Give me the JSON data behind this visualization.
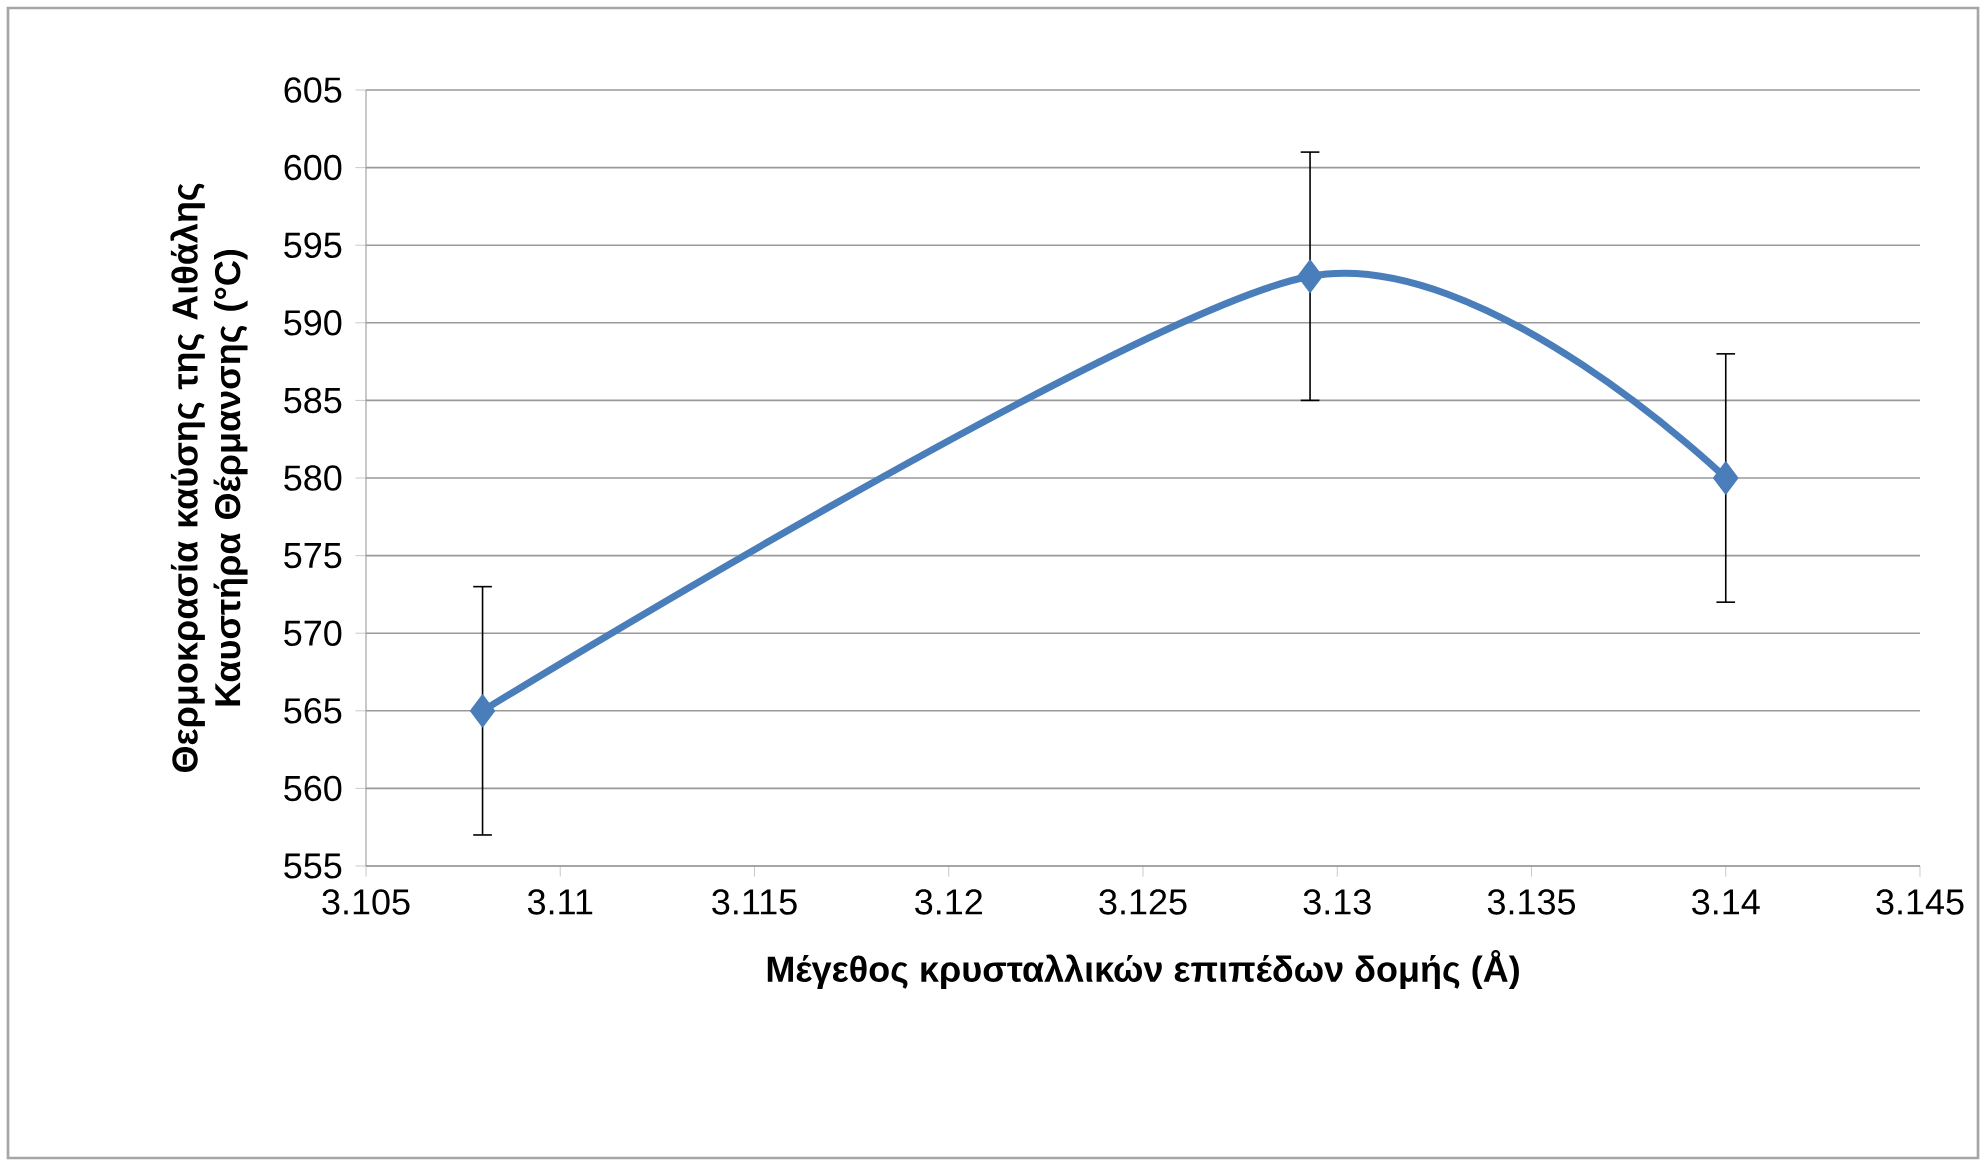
{
  "chart_data": {
    "type": "line",
    "xlabel": "Μέγεθος κρυσταλλικών επιπέδων δομής (Å)",
    "ylabel": "Θερμοκρασία καύσης της Αιθάλης Καυστήρα Θέρμανσης (°C)",
    "x": [
      3.108,
      3.1293,
      3.14
    ],
    "series": [
      {
        "color": "#4a7ebb",
        "values": [
          565,
          593,
          580
        ],
        "errors": [
          8,
          8,
          8
        ]
      }
    ],
    "marker": "diamond",
    "line_style": "solid",
    "grid": "y",
    "xlim": [
      3.105,
      3.145
    ],
    "xticks": [
      3.105,
      3.11,
      3.115,
      3.12,
      3.125,
      3.13,
      3.135,
      3.14,
      3.145
    ],
    "ylim": [
      555,
      605
    ],
    "yticks": [
      555,
      560,
      565,
      570,
      575,
      580,
      585,
      590,
      595,
      600,
      605
    ]
  }
}
